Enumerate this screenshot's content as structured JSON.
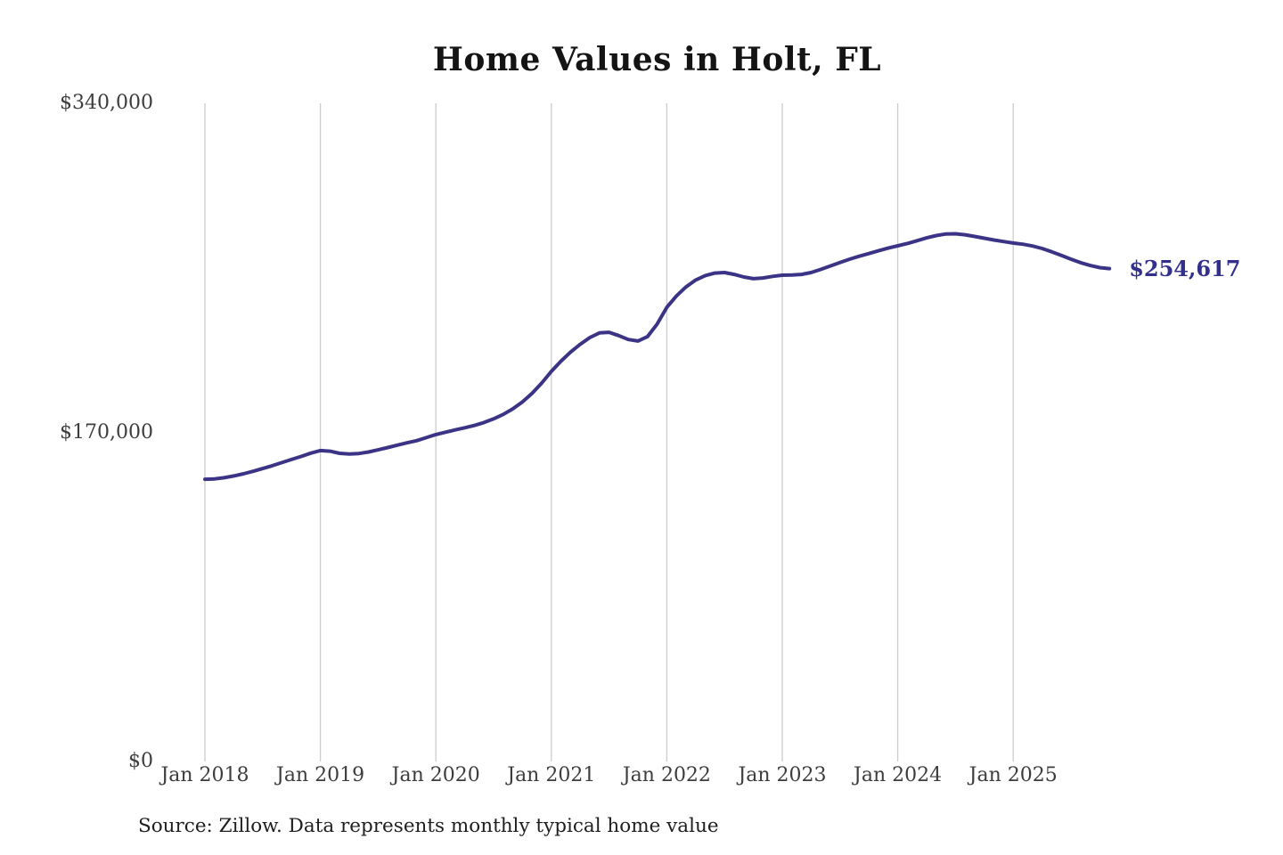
{
  "page": {
    "background": "#ffffff"
  },
  "chart_data": {
    "type": "line",
    "title": "Home Values in Holt, FL",
    "source_note": "Source: Zillow. Data represents monthly typical home value",
    "series_name": "Monthly typical home value",
    "end_label": "$254,617",
    "end_value": 254617,
    "ylim": [
      0,
      340000
    ],
    "grid": "vertical-only",
    "legend": "none",
    "line_color": "#3b3486",
    "end_label_color": "#33308c",
    "gridline_color": "#cccccc",
    "tick_text_color": "#3d3d3d",
    "y_ticks": [
      {
        "label": "$340,000",
        "value": 340000
      },
      {
        "label": "$170,000",
        "value": 170000
      },
      {
        "label": "$0",
        "value": 0
      }
    ],
    "x_tick_labels": [
      "Jan 2018",
      "Jan 2019",
      "Jan 2020",
      "Jan 2021",
      "Jan 2022",
      "Jan 2023",
      "Jan 2024",
      "Jan 2025"
    ],
    "x": [
      "2018-01",
      "2018-02",
      "2018-03",
      "2018-04",
      "2018-05",
      "2018-06",
      "2018-07",
      "2018-08",
      "2018-09",
      "2018-10",
      "2018-11",
      "2018-12",
      "2019-01",
      "2019-02",
      "2019-03",
      "2019-04",
      "2019-05",
      "2019-06",
      "2019-07",
      "2019-08",
      "2019-09",
      "2019-10",
      "2019-11",
      "2019-12",
      "2020-01",
      "2020-02",
      "2020-03",
      "2020-04",
      "2020-05",
      "2020-06",
      "2020-07",
      "2020-08",
      "2020-09",
      "2020-10",
      "2020-11",
      "2020-12",
      "2021-01",
      "2021-02",
      "2021-03",
      "2021-04",
      "2021-05",
      "2021-06",
      "2021-07",
      "2021-08",
      "2021-09",
      "2021-10",
      "2021-11",
      "2021-12",
      "2022-01",
      "2022-02",
      "2022-03",
      "2022-04",
      "2022-05",
      "2022-06",
      "2022-07",
      "2022-08",
      "2022-09",
      "2022-10",
      "2022-11",
      "2022-12",
      "2023-01",
      "2023-02",
      "2023-03",
      "2023-04",
      "2023-05",
      "2023-06",
      "2023-07",
      "2023-08",
      "2023-09",
      "2023-10",
      "2023-11",
      "2023-12",
      "2024-01",
      "2024-02",
      "2024-03",
      "2024-04",
      "2024-05",
      "2024-06",
      "2024-07",
      "2024-08",
      "2024-09",
      "2024-10",
      "2024-11",
      "2024-12",
      "2025-01",
      "2025-02",
      "2025-03",
      "2025-04",
      "2025-05",
      "2025-06",
      "2025-07",
      "2025-08",
      "2025-09",
      "2025-10",
      "2025-11"
    ],
    "values": [
      145800,
      146000,
      146600,
      147500,
      148600,
      149900,
      151300,
      152800,
      154400,
      156000,
      157600,
      159300,
      160600,
      160300,
      159200,
      158800,
      159100,
      159900,
      161000,
      162200,
      163400,
      164600,
      165700,
      167300,
      168900,
      170100,
      171300,
      172400,
      173600,
      175100,
      177000,
      179300,
      182200,
      185800,
      190200,
      195500,
      201500,
      206800,
      211500,
      215500,
      219000,
      221400,
      221700,
      220000,
      218000,
      217200,
      219500,
      226000,
      234600,
      240500,
      245200,
      248700,
      251000,
      252300,
      252600,
      251600,
      250300,
      249400,
      249800,
      250600,
      251200,
      251300,
      251600,
      252600,
      254200,
      256000,
      257800,
      259500,
      261000,
      262400,
      263800,
      265200,
      266400,
      267600,
      269000,
      270500,
      271700,
      272500,
      272600,
      272100,
      271200,
      270300,
      269400,
      268600,
      267800,
      267200,
      266300,
      265000,
      263300,
      261400,
      259500,
      257700,
      256200,
      255100,
      254617
    ]
  }
}
